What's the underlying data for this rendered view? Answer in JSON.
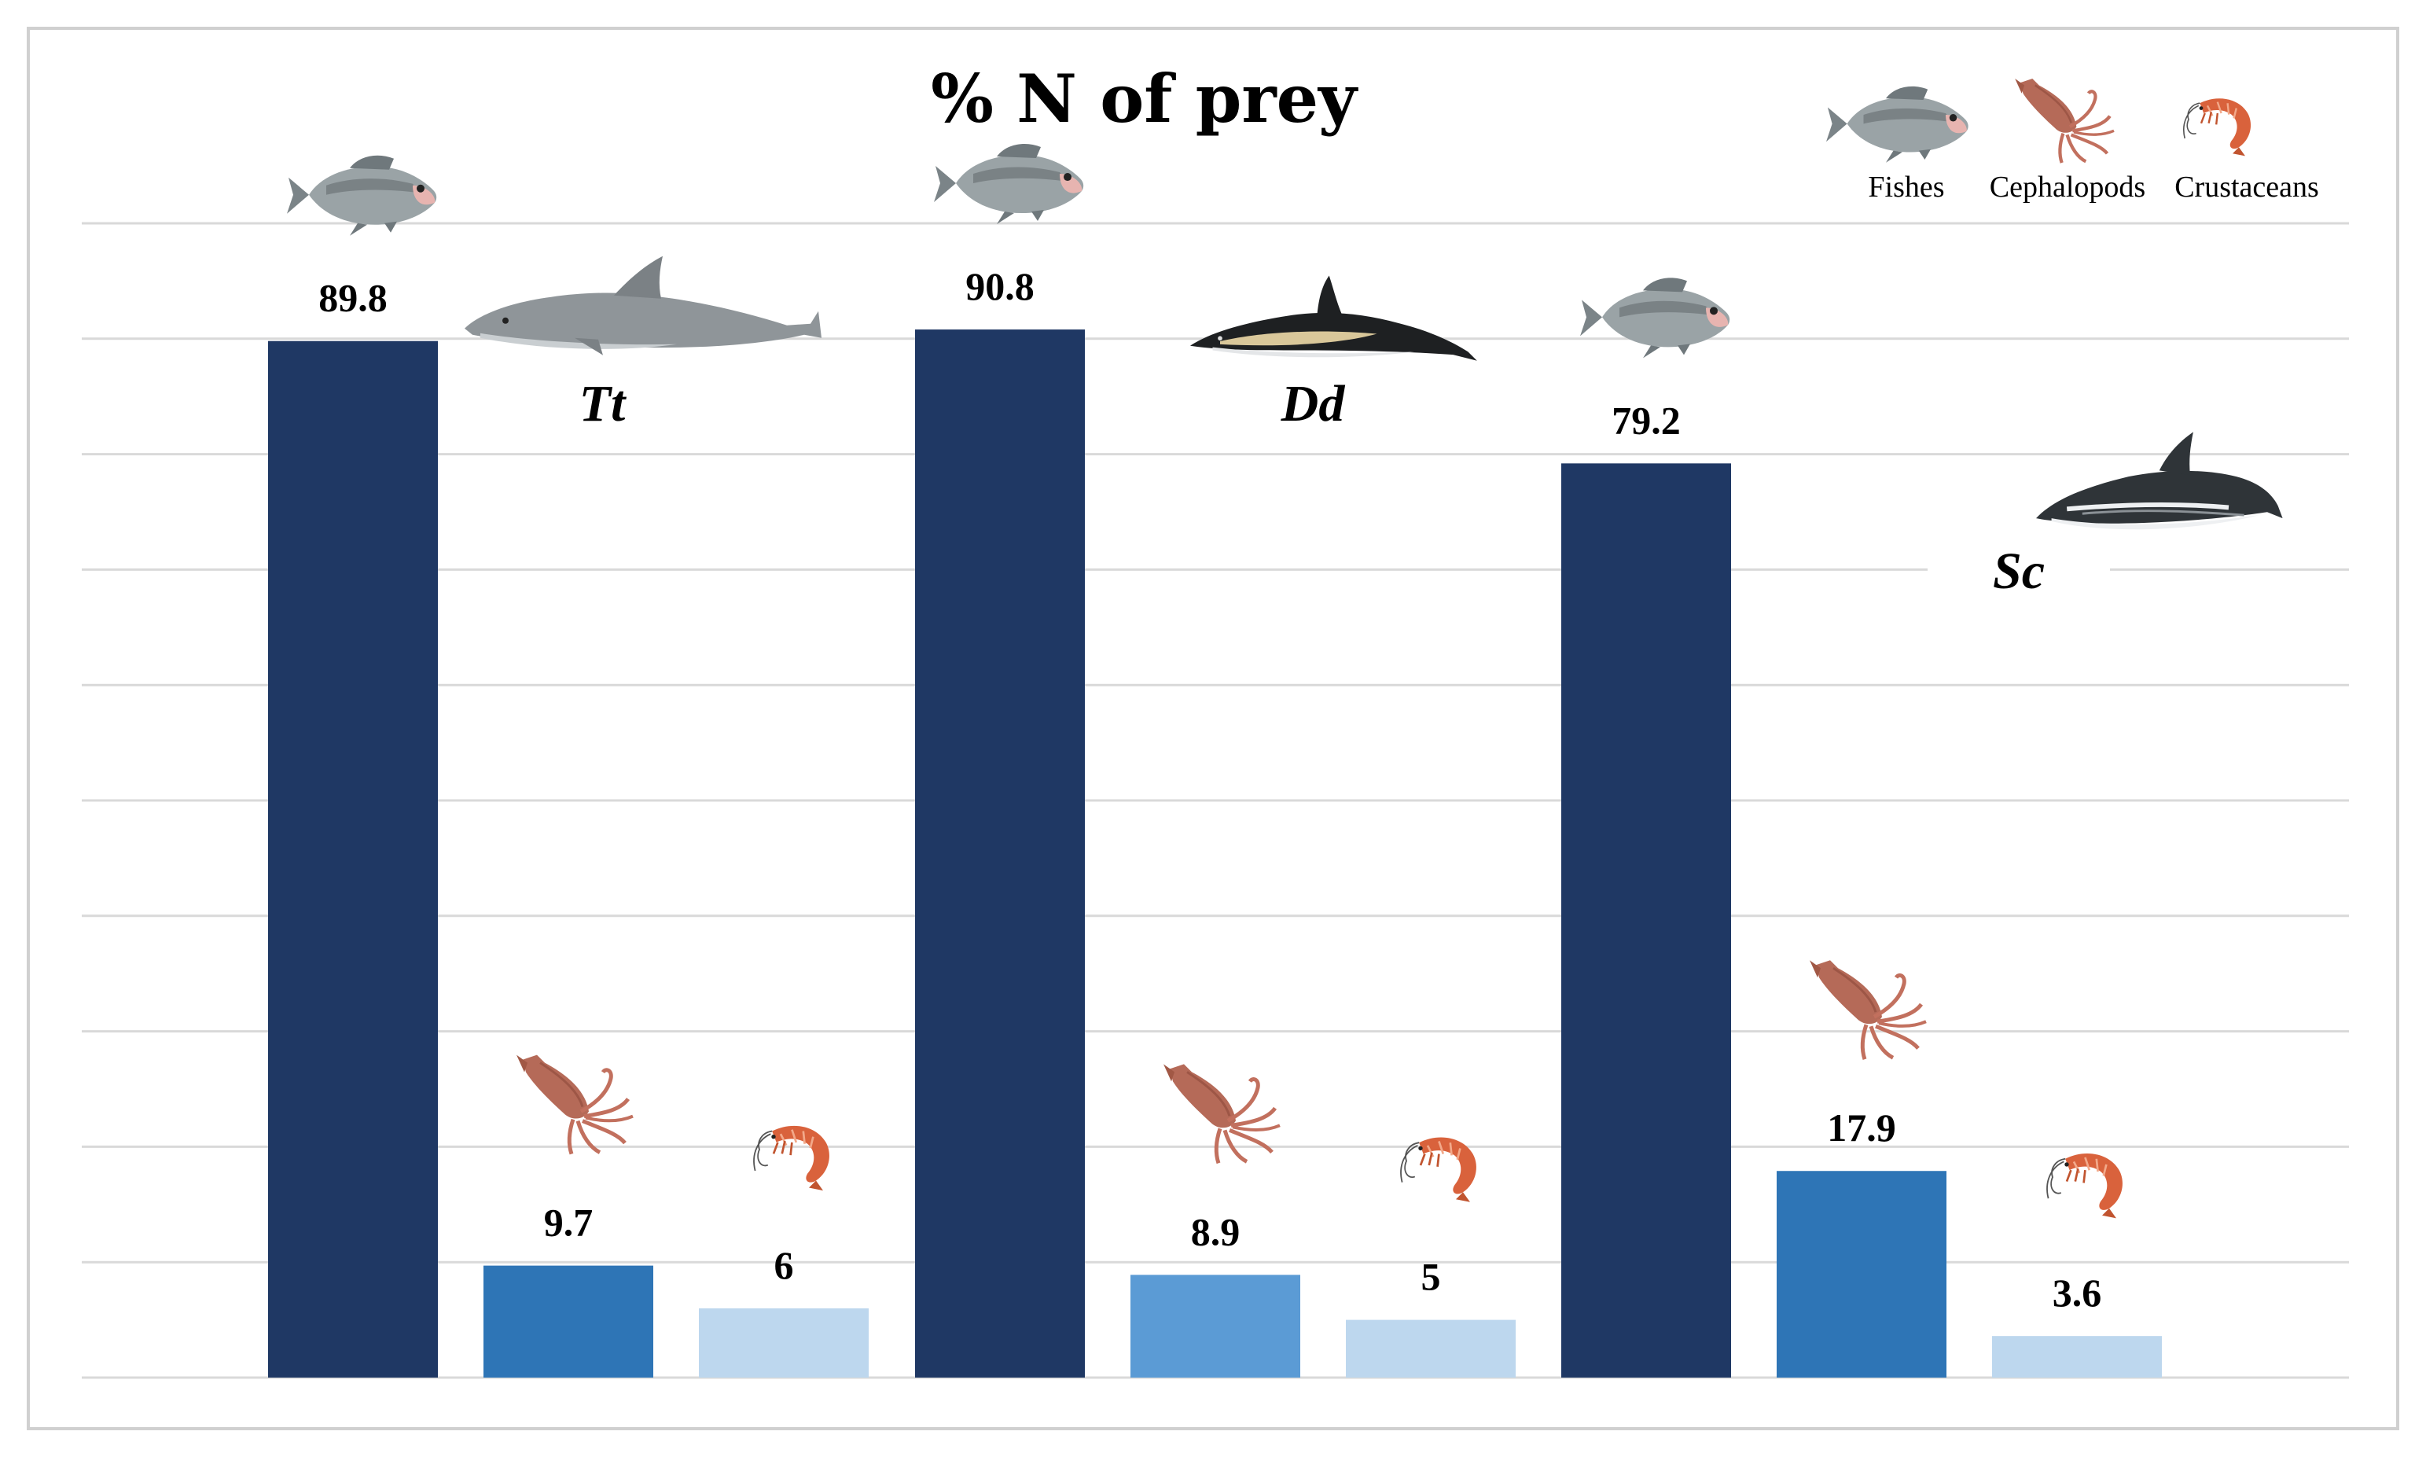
{
  "chart_data": {
    "type": "bar",
    "title": "% N of prey",
    "categories": [
      "Tt",
      "Dd",
      "Sc"
    ],
    "series": [
      {
        "name": "Fishes",
        "values": [
          89.8,
          90.8,
          79.2
        ]
      },
      {
        "name": "Cephalopods",
        "values": [
          9.7,
          8.9,
          17.9
        ]
      },
      {
        "name": "Crustaceans",
        "values": [
          6,
          5,
          3.6
        ]
      }
    ],
    "ylim": [
      0,
      100
    ],
    "grid": true,
    "legend": "top-right",
    "xlabel": "",
    "ylabel": ""
  },
  "colors": {
    "Tt": [
      "#1f3864",
      "#2e75b6",
      "#bdd7ee"
    ],
    "Dd": [
      "#1f3864",
      "#5b9bd5",
      "#bdd7ee"
    ],
    "Sc": [
      "#1f3864",
      "#2e75b6",
      "#bdd7ee"
    ],
    "grid": "#d9d9d9"
  },
  "icons": {
    "series": [
      "fish-icon",
      "squid-icon",
      "shrimp-icon"
    ],
    "species": [
      "bottlenose-dolphin-icon",
      "common-dolphin-icon",
      "striped-dolphin-icon"
    ]
  }
}
